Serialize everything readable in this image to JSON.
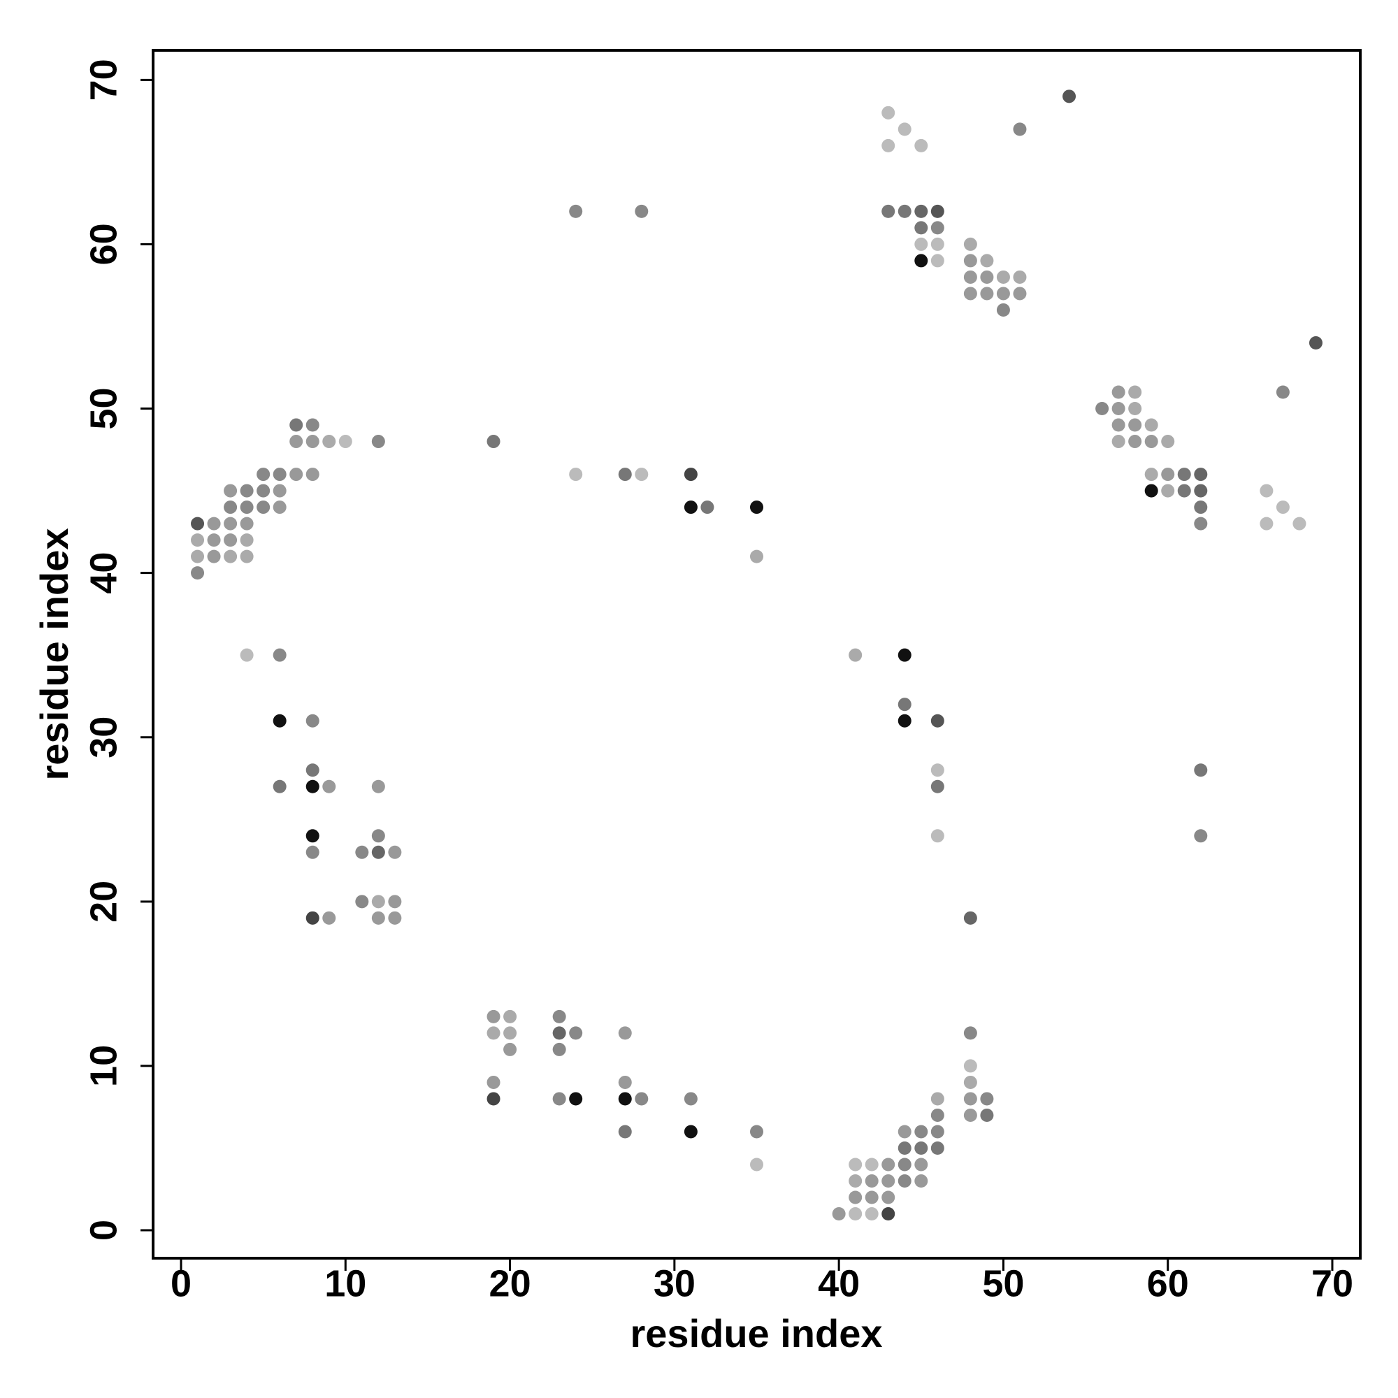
{
  "chart_data": {
    "type": "scatter",
    "x_label": "residue index",
    "y_label": "residue index",
    "xlim": [
      -1.7,
      71.7
    ],
    "ylim": [
      -1.7,
      71.8
    ],
    "xticks": [
      0,
      10,
      20,
      30,
      40,
      50,
      60,
      70
    ],
    "yticks": [
      0,
      10,
      20,
      30,
      40,
      50,
      60,
      70
    ],
    "x": [
      54,
      43,
      44,
      51,
      43,
      45,
      43,
      44,
      45,
      46,
      45,
      46,
      45,
      46,
      45,
      46,
      48,
      48,
      49,
      48,
      49,
      50,
      51,
      48,
      49,
      50,
      51,
      50,
      24,
      28,
      69,
      67,
      56,
      57,
      58,
      57,
      58,
      57,
      58,
      59,
      57,
      58,
      59,
      60,
      59,
      60,
      61,
      62,
      59,
      60,
      61,
      62,
      62,
      62,
      66,
      67,
      66,
      68,
      7,
      8,
      7,
      8,
      9,
      10,
      12,
      19,
      5,
      6,
      7,
      8,
      24,
      27,
      28,
      31,
      3,
      4,
      5,
      6,
      3,
      4,
      5,
      6,
      31,
      32,
      35,
      1,
      2,
      3,
      4,
      1,
      2,
      3,
      4,
      1,
      2,
      3,
      4,
      1,
      35,
      4,
      6,
      41,
      44,
      6,
      8,
      44,
      44,
      46,
      8,
      8,
      9,
      6,
      12,
      46,
      46,
      46,
      62,
      62,
      8,
      8,
      12,
      11,
      12,
      13,
      11,
      12,
      13,
      8,
      9,
      12,
      13,
      48,
      19,
      20,
      23,
      19,
      20,
      23,
      24,
      27,
      20,
      23,
      48,
      48,
      19,
      27,
      48,
      19,
      23,
      24,
      27,
      28,
      31,
      46,
      48,
      49,
      46,
      48,
      49,
      27,
      31,
      35,
      44,
      45,
      46,
      44,
      45,
      46,
      35,
      41,
      42,
      43,
      44,
      45,
      41,
      42,
      43,
      44,
      45,
      41,
      42,
      43,
      40,
      41,
      42,
      43
    ],
    "values": [
      69,
      68,
      67,
      67,
      66,
      66,
      62,
      62,
      62,
      62,
      61,
      61,
      60,
      60,
      59,
      59,
      60,
      59,
      59,
      58,
      58,
      58,
      58,
      57,
      57,
      57,
      57,
      56,
      62,
      62,
      54,
      51,
      50,
      51,
      51,
      50,
      50,
      49,
      49,
      49,
      48,
      48,
      48,
      48,
      46,
      46,
      46,
      46,
      45,
      45,
      45,
      45,
      44,
      43,
      45,
      44,
      43,
      43,
      49,
      49,
      48,
      48,
      48,
      48,
      48,
      48,
      46,
      46,
      46,
      46,
      46,
      46,
      46,
      46,
      45,
      45,
      45,
      45,
      44,
      44,
      44,
      44,
      44,
      44,
      44,
      43,
      43,
      43,
      43,
      42,
      42,
      42,
      42,
      41,
      41,
      41,
      41,
      40,
      41,
      35,
      35,
      35,
      35,
      31,
      31,
      32,
      31,
      31,
      28,
      27,
      27,
      27,
      27,
      28,
      27,
      24,
      28,
      24,
      24,
      23,
      24,
      23,
      23,
      23,
      20,
      20,
      20,
      19,
      19,
      19,
      19,
      19,
      13,
      13,
      13,
      12,
      12,
      12,
      12,
      12,
      11,
      11,
      12,
      10,
      9,
      9,
      9,
      8,
      8,
      8,
      8,
      8,
      8,
      8,
      8,
      8,
      7,
      7,
      7,
      6,
      6,
      6,
      6,
      6,
      6,
      5,
      5,
      5,
      4,
      4,
      4,
      4,
      4,
      4,
      3,
      3,
      3,
      3,
      3,
      2,
      2,
      2,
      1,
      1,
      1,
      1
    ],
    "colors": [
      "#555",
      "#bbb",
      "#bbb",
      "#888",
      "#bbb",
      "#bbb",
      "#777",
      "#777",
      "#666",
      "#555",
      "#777",
      "#888",
      "#bbb",
      "#bbb",
      "#111",
      "#bbb",
      "#aaa",
      "#999",
      "#aaa",
      "#999",
      "#999",
      "#aaa",
      "#aaa",
      "#999",
      "#999",
      "#999",
      "#999",
      "#888",
      "#888",
      "#888",
      "#555",
      "#888",
      "#888",
      "#999",
      "#aaa",
      "#999",
      "#aaa",
      "#999",
      "#999",
      "#aaa",
      "#aaa",
      "#999",
      "#999",
      "#aaa",
      "#aaa",
      "#999",
      "#777",
      "#666",
      "#111",
      "#aaa",
      "#777",
      "#666",
      "#777",
      "#888",
      "#bbb",
      "#bbb",
      "#bbb",
      "#bbb",
      "#777",
      "#888",
      "#999",
      "#999",
      "#aaa",
      "#bbb",
      "#888",
      "#777",
      "#888",
      "#888",
      "#999",
      "#999",
      "#bbb",
      "#777",
      "#bbb",
      "#444",
      "#999",
      "#888",
      "#888",
      "#999",
      "#888",
      "#888",
      "#888",
      "#999",
      "#111",
      "#777",
      "#111",
      "#555",
      "#999",
      "#999",
      "#999",
      "#aaa",
      "#999",
      "#999",
      "#aaa",
      "#aaa",
      "#999",
      "#aaa",
      "#aaa",
      "#888",
      "#aaa",
      "#bbb",
      "#888",
      "#aaa",
      "#111",
      "#111",
      "#888",
      "#777",
      "#111",
      "#555",
      "#777",
      "#111",
      "#999",
      "#777",
      "#999",
      "#bbb",
      "#777",
      "#bbb",
      "#777",
      "#888",
      "#111",
      "#888",
      "#888",
      "#888",
      "#666",
      "#999",
      "#888",
      "#aaa",
      "#999",
      "#444",
      "#999",
      "#999",
      "#999",
      "#666",
      "#999",
      "#aaa",
      "#888",
      "#aaa",
      "#aaa",
      "#666",
      "#888",
      "#999",
      "#999",
      "#888",
      "#888",
      "#bbb",
      "#999",
      "#999",
      "#aaa",
      "#444",
      "#888",
      "#111",
      "#111",
      "#888",
      "#888",
      "#aaa",
      "#999",
      "#888",
      "#888",
      "#999",
      "#777",
      "#777",
      "#111",
      "#888",
      "#999",
      "#888",
      "#888",
      "#777",
      "#777",
      "#777",
      "#bbb",
      "#bbb",
      "#bbb",
      "#999",
      "#888",
      "#999",
      "#aaa",
      "#999",
      "#999",
      "#888",
      "#999",
      "#999",
      "#999",
      "#999",
      "#999",
      "#bbb",
      "#bbb",
      "#444"
    ]
  }
}
